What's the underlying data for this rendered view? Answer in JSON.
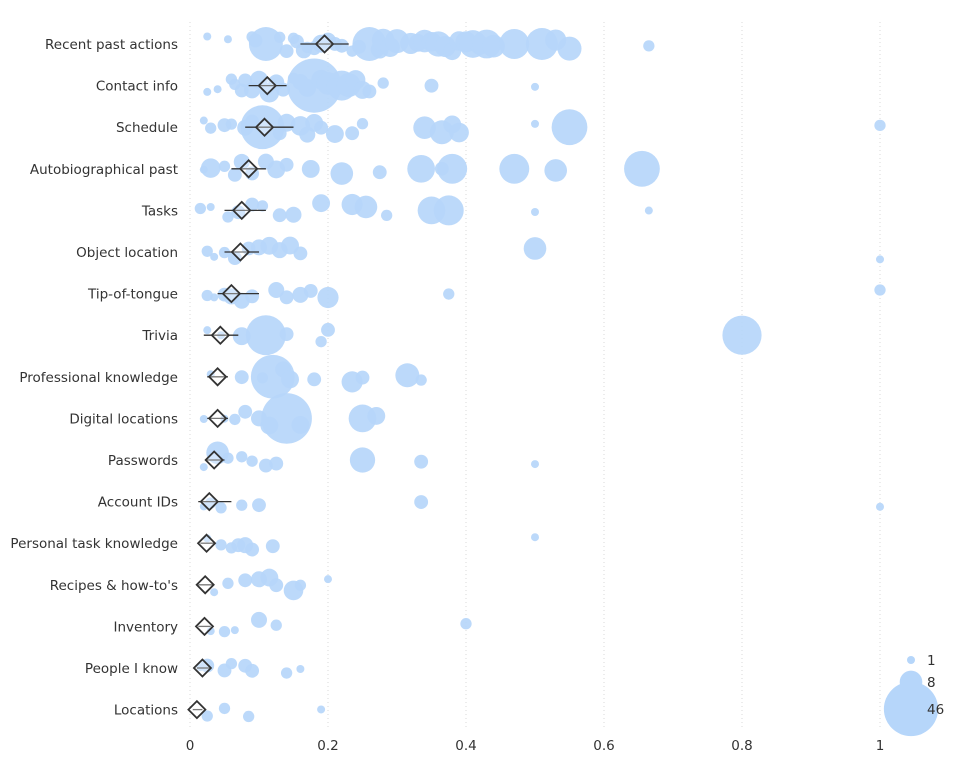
{
  "chart_data": {
    "type": "scatter",
    "categories": [
      "Recent past actions",
      "Contact info",
      "Schedule",
      "Autobiographical past",
      "Tasks",
      "Object location",
      "Tip-of-tongue",
      "Trivia",
      "Professional knowledge",
      "Digital locations",
      "Passwords",
      "Account IDs",
      "Personal task knowledge",
      "Recipes & how-to's",
      "Inventory",
      "People I know",
      "Locations"
    ],
    "xlim": [
      0,
      1
    ],
    "x_ticks": [
      0,
      0.2,
      0.4,
      0.6,
      0.8,
      1
    ],
    "x_tick_labels": [
      "0",
      "0.2",
      "0.4",
      "0.6",
      "0.8",
      "1"
    ],
    "grid": "vertical",
    "bubble_color": "#b6d6fa",
    "mean_marker_color": "#333333",
    "legend": {
      "placement": "bottom-right",
      "sizes": [
        1,
        8,
        46
      ],
      "labels": [
        "1",
        "8",
        "46"
      ]
    },
    "means": [
      0.195,
      0.112,
      0.108,
      0.085,
      0.075,
      0.073,
      0.06,
      0.044,
      0.04,
      0.04,
      0.035,
      0.028,
      0.024,
      0.022,
      0.021,
      0.018,
      0.01
    ],
    "ci_low": [
      0.16,
      0.085,
      0.08,
      0.06,
      0.05,
      0.05,
      0.04,
      0.02,
      0.025,
      0.025,
      0.022,
      0.012,
      0.015,
      0.012,
      0.012,
      0.01,
      0.004
    ],
    "ci_high": [
      0.23,
      0.14,
      0.15,
      0.11,
      0.11,
      0.1,
      0.1,
      0.07,
      0.055,
      0.055,
      0.05,
      0.06,
      0.035,
      0.035,
      0.03,
      0.028,
      0.018
    ],
    "series": [
      {
        "name": "Recent past actions",
        "points": [
          [
            0.025,
            1
          ],
          [
            0.055,
            1
          ],
          [
            0.09,
            2
          ],
          [
            0.095,
            3
          ],
          [
            0.11,
            18
          ],
          [
            0.13,
            2
          ],
          [
            0.14,
            3
          ],
          [
            0.15,
            2
          ],
          [
            0.155,
            3
          ],
          [
            0.165,
            4
          ],
          [
            0.17,
            2
          ],
          [
            0.18,
            3
          ],
          [
            0.19,
            5
          ],
          [
            0.2,
            4
          ],
          [
            0.21,
            3
          ],
          [
            0.22,
            3
          ],
          [
            0.235,
            2
          ],
          [
            0.245,
            3
          ],
          [
            0.26,
            18
          ],
          [
            0.275,
            5
          ],
          [
            0.28,
            8
          ],
          [
            0.29,
            6
          ],
          [
            0.3,
            9
          ],
          [
            0.32,
            7
          ],
          [
            0.33,
            5
          ],
          [
            0.34,
            8
          ],
          [
            0.35,
            6
          ],
          [
            0.36,
            10
          ],
          [
            0.37,
            7
          ],
          [
            0.38,
            5
          ],
          [
            0.39,
            6
          ],
          [
            0.4,
            7
          ],
          [
            0.41,
            12
          ],
          [
            0.42,
            6
          ],
          [
            0.43,
            13
          ],
          [
            0.44,
            8
          ],
          [
            0.47,
            14
          ],
          [
            0.51,
            16
          ],
          [
            0.53,
            7
          ],
          [
            0.55,
            9
          ],
          [
            0.665,
            2
          ]
        ]
      },
      {
        "name": "Contact info",
        "points": [
          [
            0.025,
            1
          ],
          [
            0.04,
            1
          ],
          [
            0.06,
            2
          ],
          [
            0.065,
            2
          ],
          [
            0.075,
            3
          ],
          [
            0.08,
            3
          ],
          [
            0.09,
            4
          ],
          [
            0.1,
            5
          ],
          [
            0.115,
            6
          ],
          [
            0.125,
            4
          ],
          [
            0.135,
            3
          ],
          [
            0.15,
            2
          ],
          [
            0.16,
            4
          ],
          [
            0.17,
            5
          ],
          [
            0.18,
            46
          ],
          [
            0.19,
            6
          ],
          [
            0.2,
            8
          ],
          [
            0.21,
            5
          ],
          [
            0.22,
            14
          ],
          [
            0.23,
            9
          ],
          [
            0.24,
            6
          ],
          [
            0.25,
            5
          ],
          [
            0.26,
            3
          ],
          [
            0.28,
            2
          ],
          [
            0.35,
            3
          ],
          [
            0.5,
            1
          ]
        ]
      },
      {
        "name": "Schedule",
        "points": [
          [
            0.02,
            1
          ],
          [
            0.03,
            2
          ],
          [
            0.05,
            3
          ],
          [
            0.06,
            2
          ],
          [
            0.08,
            4
          ],
          [
            0.09,
            3
          ],
          [
            0.105,
            30
          ],
          [
            0.13,
            3
          ],
          [
            0.14,
            5
          ],
          [
            0.16,
            6
          ],
          [
            0.17,
            4
          ],
          [
            0.18,
            5
          ],
          [
            0.19,
            3
          ],
          [
            0.21,
            5
          ],
          [
            0.235,
            3
          ],
          [
            0.25,
            2
          ],
          [
            0.34,
            8
          ],
          [
            0.365,
            9
          ],
          [
            0.38,
            5
          ],
          [
            0.39,
            6
          ],
          [
            0.5,
            1
          ],
          [
            0.55,
            20
          ],
          [
            1.0,
            2
          ]
        ]
      },
      {
        "name": "Autobiographical past",
        "points": [
          [
            0.02,
            1
          ],
          [
            0.03,
            6
          ],
          [
            0.05,
            2
          ],
          [
            0.065,
            3
          ],
          [
            0.075,
            4
          ],
          [
            0.09,
            3
          ],
          [
            0.11,
            4
          ],
          [
            0.125,
            5
          ],
          [
            0.14,
            3
          ],
          [
            0.175,
            5
          ],
          [
            0.22,
            8
          ],
          [
            0.275,
            3
          ],
          [
            0.335,
            12
          ],
          [
            0.365,
            3
          ],
          [
            0.38,
            14
          ],
          [
            0.47,
            14
          ],
          [
            0.53,
            8
          ],
          [
            0.655,
            20
          ]
        ]
      },
      {
        "name": "Tasks",
        "points": [
          [
            0.015,
            2
          ],
          [
            0.03,
            1
          ],
          [
            0.055,
            2
          ],
          [
            0.07,
            3
          ],
          [
            0.09,
            3
          ],
          [
            0.105,
            2
          ],
          [
            0.13,
            3
          ],
          [
            0.15,
            4
          ],
          [
            0.19,
            5
          ],
          [
            0.235,
            7
          ],
          [
            0.255,
            8
          ],
          [
            0.285,
            2
          ],
          [
            0.35,
            12
          ],
          [
            0.375,
            14
          ],
          [
            0.5,
            1
          ],
          [
            0.665,
            1
          ]
        ]
      },
      {
        "name": "Object location",
        "points": [
          [
            0.025,
            2
          ],
          [
            0.035,
            1
          ],
          [
            0.05,
            2
          ],
          [
            0.065,
            3
          ],
          [
            0.085,
            3
          ],
          [
            0.1,
            4
          ],
          [
            0.115,
            5
          ],
          [
            0.13,
            4
          ],
          [
            0.145,
            5
          ],
          [
            0.16,
            3
          ],
          [
            0.5,
            8
          ],
          [
            1.0,
            1
          ]
        ]
      },
      {
        "name": "Tip-of-tongue",
        "points": [
          [
            0.025,
            2
          ],
          [
            0.035,
            1
          ],
          [
            0.05,
            3
          ],
          [
            0.06,
            4
          ],
          [
            0.075,
            4
          ],
          [
            0.09,
            3
          ],
          [
            0.125,
            4
          ],
          [
            0.14,
            3
          ],
          [
            0.16,
            4
          ],
          [
            0.175,
            3
          ],
          [
            0.2,
            7
          ],
          [
            0.375,
            2
          ],
          [
            1.0,
            2
          ]
        ]
      },
      {
        "name": "Trivia",
        "points": [
          [
            0.025,
            1
          ],
          [
            0.045,
            1
          ],
          [
            0.075,
            5
          ],
          [
            0.11,
            25
          ],
          [
            0.14,
            3
          ],
          [
            0.19,
            2
          ],
          [
            0.2,
            3
          ],
          [
            0.8,
            24
          ]
        ]
      },
      {
        "name": "Professional knowledge",
        "points": [
          [
            0.03,
            1
          ],
          [
            0.075,
            3
          ],
          [
            0.105,
            2
          ],
          [
            0.12,
            30
          ],
          [
            0.135,
            4
          ],
          [
            0.145,
            5
          ],
          [
            0.18,
            3
          ],
          [
            0.235,
            7
          ],
          [
            0.25,
            3
          ],
          [
            0.315,
            9
          ],
          [
            0.335,
            2
          ]
        ]
      },
      {
        "name": "Digital locations",
        "points": [
          [
            0.02,
            1
          ],
          [
            0.05,
            1
          ],
          [
            0.065,
            2
          ],
          [
            0.08,
            3
          ],
          [
            0.1,
            4
          ],
          [
            0.115,
            5
          ],
          [
            0.14,
            40
          ],
          [
            0.16,
            5
          ],
          [
            0.25,
            12
          ],
          [
            0.27,
            5
          ]
        ]
      },
      {
        "name": "Passwords",
        "points": [
          [
            0.02,
            1
          ],
          [
            0.04,
            8
          ],
          [
            0.055,
            2
          ],
          [
            0.075,
            2
          ],
          [
            0.09,
            2
          ],
          [
            0.11,
            3
          ],
          [
            0.125,
            3
          ],
          [
            0.25,
            10
          ],
          [
            0.335,
            3
          ],
          [
            0.5,
            1
          ]
        ]
      },
      {
        "name": "Account IDs",
        "points": [
          [
            0.02,
            1
          ],
          [
            0.03,
            2
          ],
          [
            0.045,
            2
          ],
          [
            0.075,
            2
          ],
          [
            0.1,
            3
          ],
          [
            0.335,
            3
          ],
          [
            1.0,
            1
          ]
        ]
      },
      {
        "name": "Personal task knowledge",
        "points": [
          [
            0.025,
            1
          ],
          [
            0.045,
            2
          ],
          [
            0.06,
            2
          ],
          [
            0.07,
            3
          ],
          [
            0.08,
            4
          ],
          [
            0.09,
            3
          ],
          [
            0.12,
            3
          ],
          [
            0.5,
            1
          ]
        ]
      },
      {
        "name": "Recipes & how-to's",
        "points": [
          [
            0.035,
            1
          ],
          [
            0.055,
            2
          ],
          [
            0.08,
            3
          ],
          [
            0.1,
            4
          ],
          [
            0.115,
            5
          ],
          [
            0.125,
            3
          ],
          [
            0.15,
            6
          ],
          [
            0.16,
            2
          ],
          [
            0.2,
            1
          ]
        ]
      },
      {
        "name": "Inventory",
        "points": [
          [
            0.03,
            1
          ],
          [
            0.05,
            2
          ],
          [
            0.065,
            1
          ],
          [
            0.1,
            4
          ],
          [
            0.125,
            2
          ],
          [
            0.4,
            2
          ]
        ]
      },
      {
        "name": "People I know",
        "points": [
          [
            0.015,
            1
          ],
          [
            0.025,
            3
          ],
          [
            0.05,
            3
          ],
          [
            0.06,
            2
          ],
          [
            0.08,
            3
          ],
          [
            0.09,
            3
          ],
          [
            0.14,
            2
          ],
          [
            0.16,
            1
          ]
        ]
      },
      {
        "name": "Locations",
        "points": [
          [
            0.025,
            2
          ],
          [
            0.05,
            2
          ],
          [
            0.085,
            2
          ],
          [
            0.19,
            1
          ]
        ]
      }
    ]
  }
}
